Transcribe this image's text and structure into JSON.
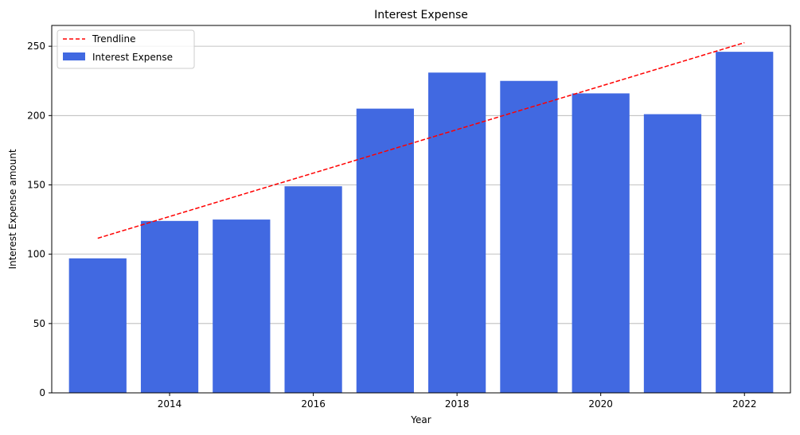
{
  "chart_data": {
    "type": "bar",
    "title": "Interest Expense",
    "xlabel": "Year",
    "ylabel": "Interest Expense amount",
    "x": [
      2013,
      2014,
      2015,
      2016,
      2017,
      2018,
      2019,
      2020,
      2021,
      2022
    ],
    "series": [
      {
        "name": "Interest Expense",
        "type": "bar",
        "color": "#4169e1",
        "values": [
          97,
          124,
          125,
          149,
          205,
          231,
          225,
          216,
          201,
          246
        ]
      },
      {
        "name": "Trendline",
        "type": "line",
        "style": "dashed",
        "color": "#ff0000",
        "values": [
          111.5,
          127.2,
          142.9,
          158.5,
          174.2,
          189.9,
          205.6,
          221.2,
          236.9,
          252.6
        ]
      }
    ],
    "xlim": [
      2012.36,
      2022.64
    ],
    "ylim": [
      0,
      265
    ],
    "xticks": [
      2014,
      2016,
      2018,
      2020,
      2022
    ],
    "yticks": [
      0,
      50,
      100,
      150,
      200,
      250
    ],
    "grid": "horizontal",
    "legend": "top-left"
  }
}
